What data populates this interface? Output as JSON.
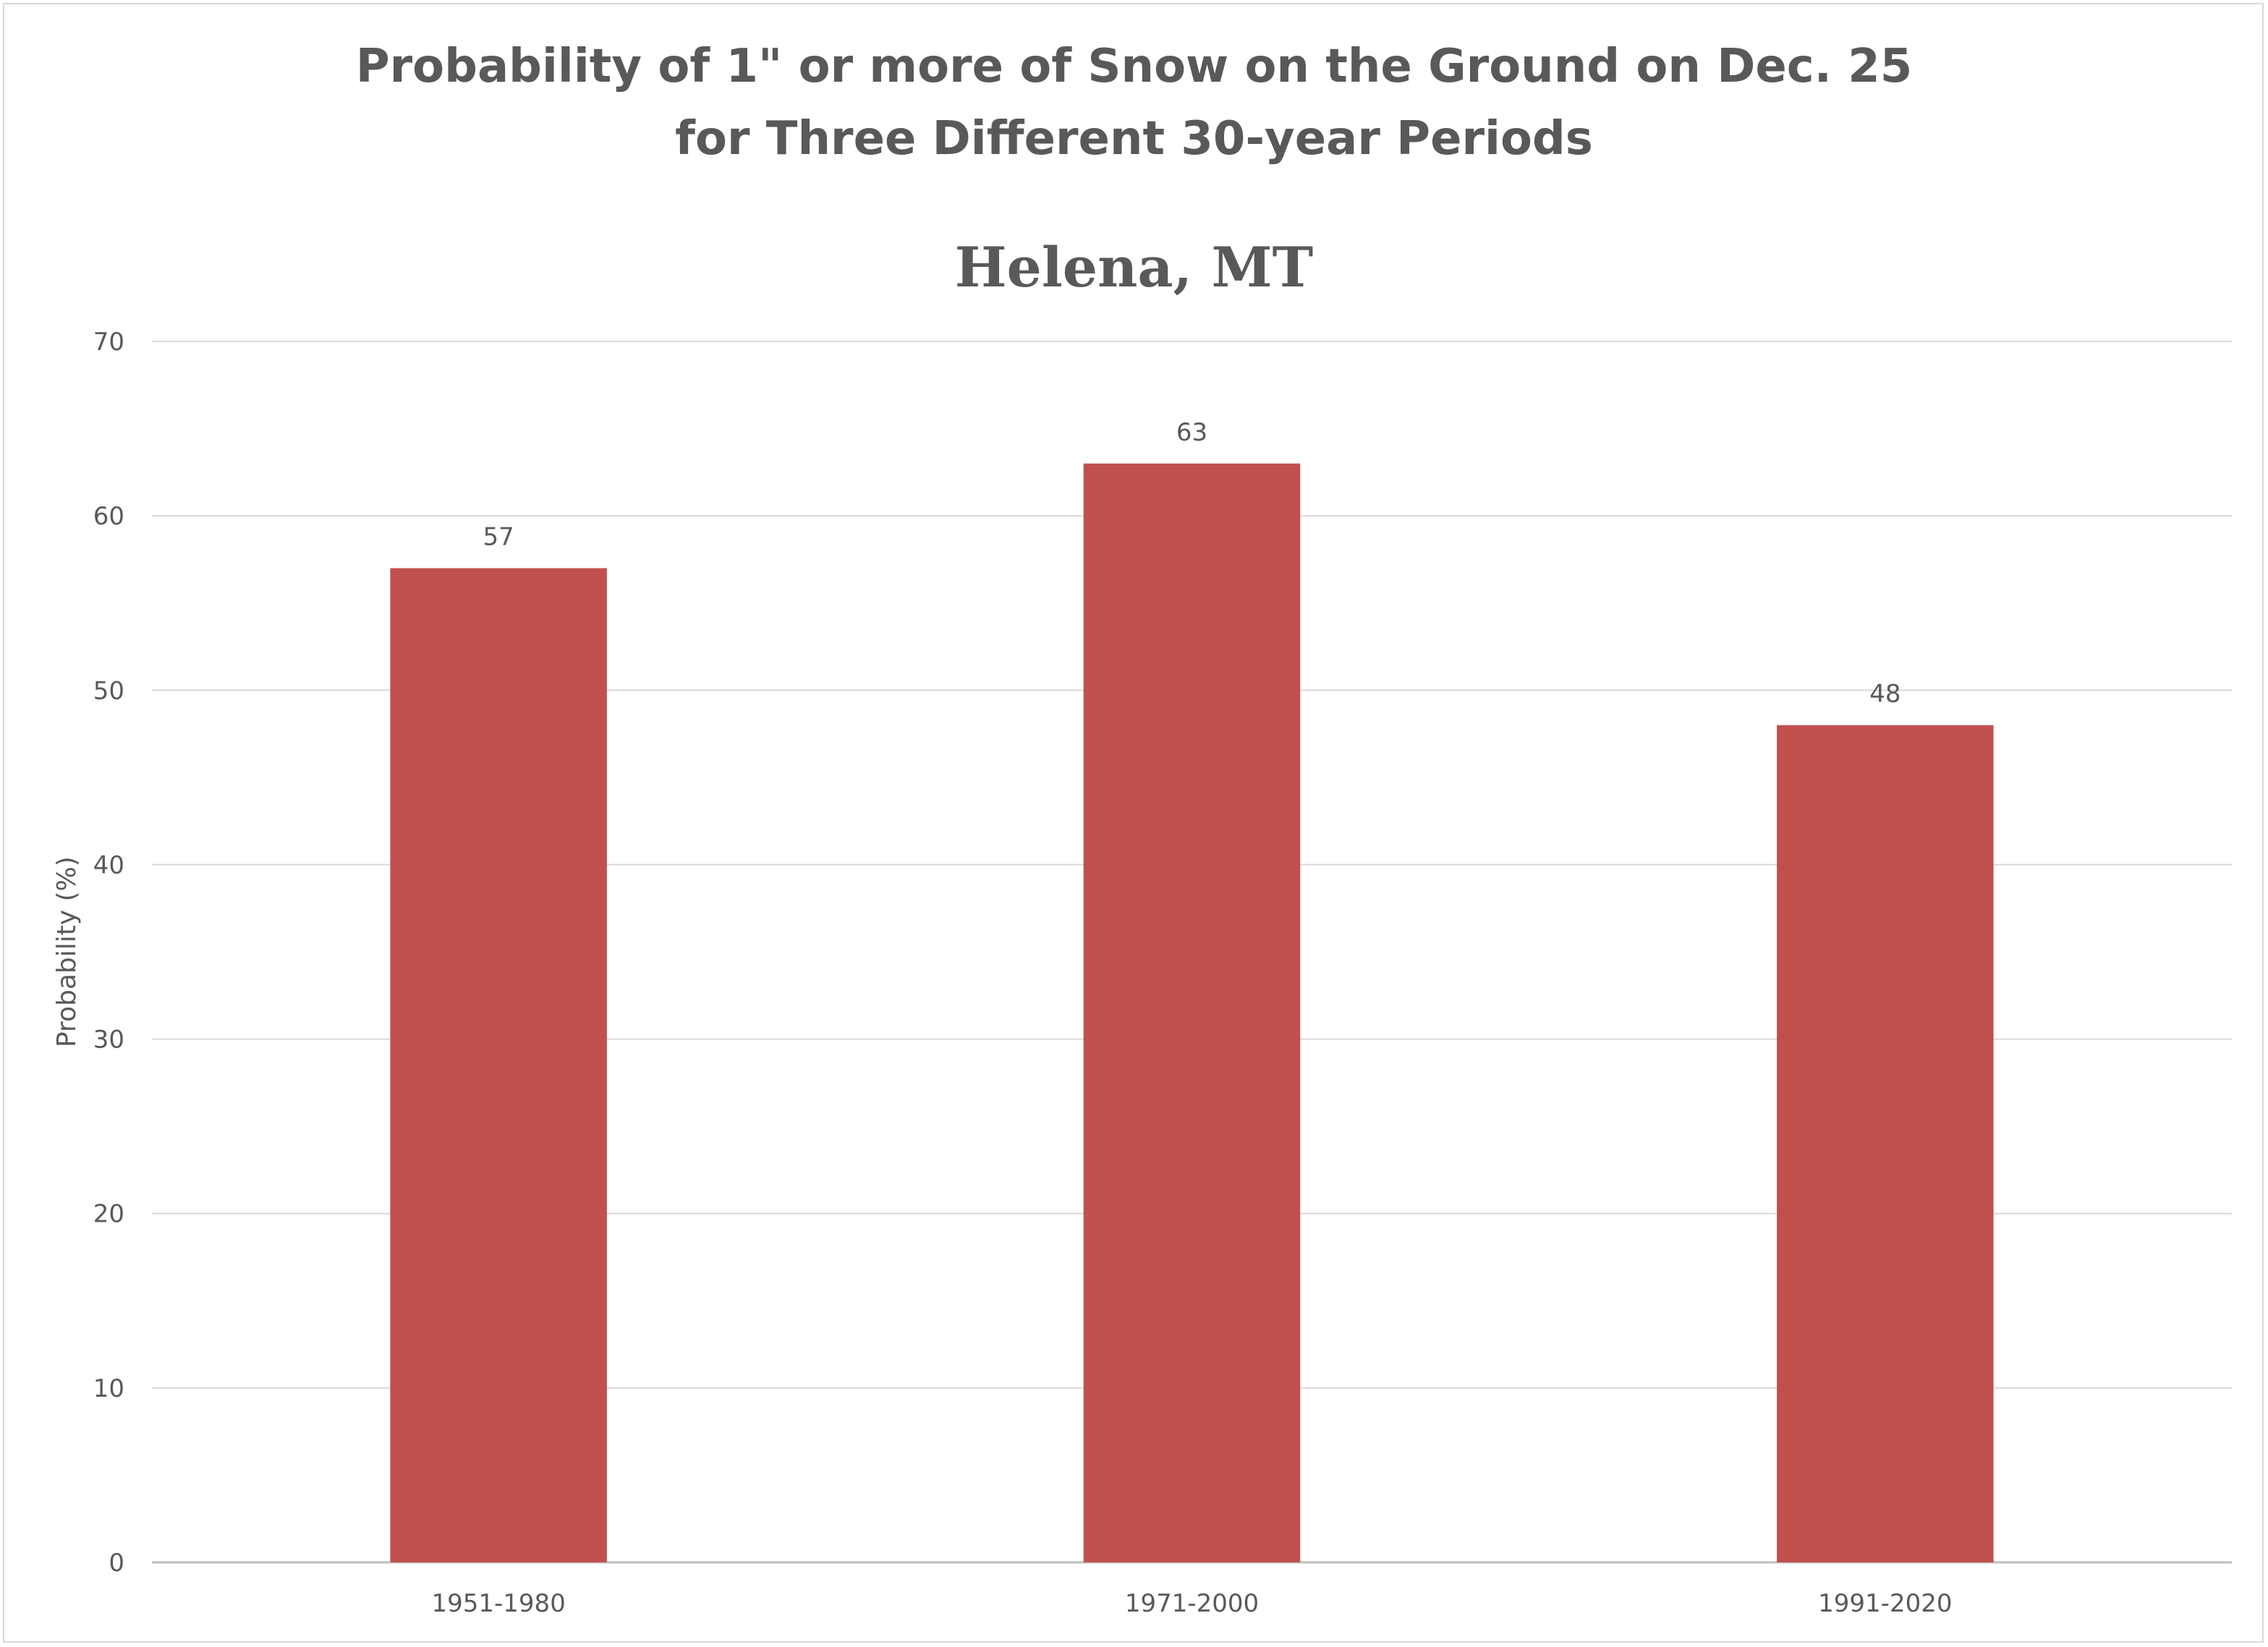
{
  "chart_data": {
    "type": "bar",
    "title": "Probability of 1\" or more of Snow on the Ground on Dec. 25",
    "title_line2": "for Three Different 30-year Periods",
    "subtitle": "Helena, MT",
    "xlabel": "",
    "ylabel": "Probability (%)",
    "categories": [
      "1951-1980",
      "1971-2000",
      "1991-2020"
    ],
    "values": [
      57,
      63,
      48
    ],
    "ylim": [
      0,
      70
    ],
    "yticks": [
      0,
      10,
      20,
      30,
      40,
      50,
      60,
      70
    ],
    "grid": true,
    "legend": "none",
    "bar_color": "#C0504D",
    "grid_color": "#D9D9D9",
    "text_color": "#595959"
  }
}
